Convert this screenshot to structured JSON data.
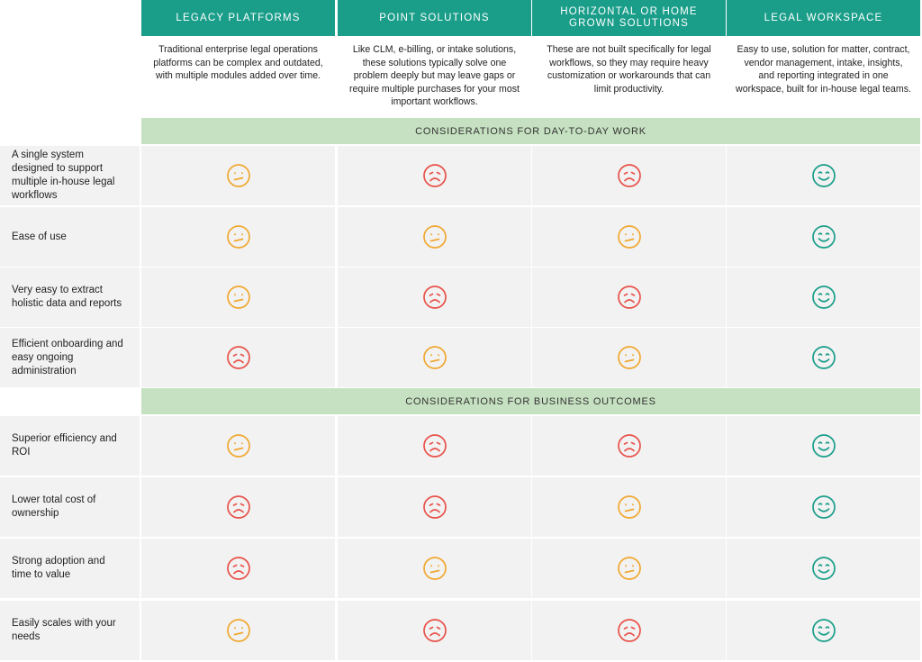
{
  "columns": [
    {
      "title": "LEGACY PLATFORMS",
      "description": "Traditional enterprise legal operations platforms can be complex and outdated, with multiple modules added over time."
    },
    {
      "title": "POINT SOLUTIONS",
      "description": "Like CLM, e-billing, or intake solutions, these solutions typically solve one problem deeply but may leave gaps or require multiple purchases for your most important workflows."
    },
    {
      "title": "HORIZONTAL OR HOME GROWN SOLUTIONS",
      "description": "These are not built specifically for legal workflows, so they may require heavy customization or workarounds that can limit productivity."
    },
    {
      "title": "LEGAL WORKSPACE",
      "description": "Easy to use, solution for matter, contract, vendor management, intake, insights, and reporting integrated in one workspace, built for in-house legal teams."
    }
  ],
  "sections": [
    {
      "title": "CONSIDERATIONS FOR DAY-TO-DAY WORK",
      "rows": [
        {
          "label": "A single system designed to support multiple in-house legal workflows",
          "ratings": [
            1,
            0,
            0,
            2
          ]
        },
        {
          "label": "Ease of use",
          "ratings": [
            1,
            1,
            1,
            2
          ]
        },
        {
          "label": "Very easy to extract holistic data and reports",
          "ratings": [
            1,
            0,
            0,
            2
          ]
        },
        {
          "label": "Efficient onboarding and easy ongoing administration",
          "ratings": [
            0,
            1,
            1,
            2
          ]
        }
      ]
    },
    {
      "title": "CONSIDERATIONS FOR BUSINESS OUTCOMES",
      "rows": [
        {
          "label": "Superior efficiency and ROI",
          "ratings": [
            1,
            0,
            0,
            2
          ]
        },
        {
          "label": "Lower total cost of ownership",
          "ratings": [
            0,
            0,
            1,
            2
          ]
        },
        {
          "label": "Strong adoption and time to value",
          "ratings": [
            0,
            1,
            1,
            2
          ]
        },
        {
          "label": "Easily scales with your needs",
          "ratings": [
            1,
            0,
            0,
            2
          ]
        }
      ]
    }
  ]
}
